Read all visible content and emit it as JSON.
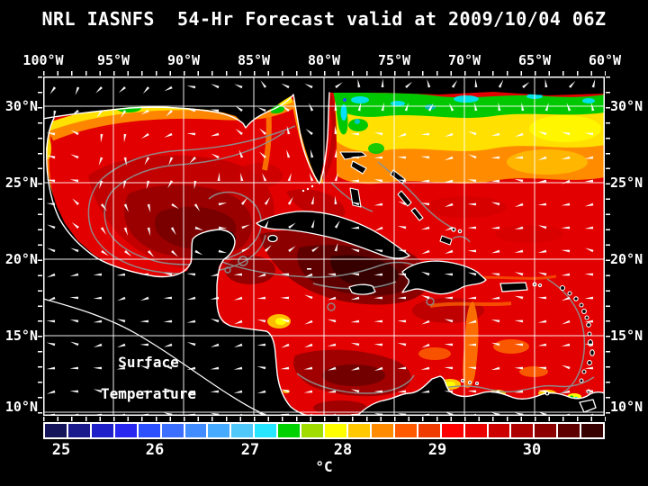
{
  "title": "NRL IASNFS  54-Hr Forecast valid at 2009/10/04 06Z",
  "annotation": {
    "line1": "Surface",
    "line2": "Temperature"
  },
  "axes": {
    "top_labels": [
      "100°W",
      "95°W",
      "90°W",
      "85°W",
      "80°W",
      "75°W",
      "70°W",
      "65°W",
      "60°W"
    ],
    "left_labels": [
      "30°N",
      "25°N",
      "20°N",
      "15°N",
      "10°N"
    ],
    "right_labels": [
      "30°N",
      "25°N",
      "20°N",
      "15°N",
      "10°N"
    ]
  },
  "colorbar": {
    "tick_labels": [
      "25",
      "26",
      "27",
      "28",
      "29",
      "30"
    ],
    "unit_label": "°C",
    "cell_colors": [
      "#14145a",
      "#1a1a8c",
      "#2020c8",
      "#2828f0",
      "#2d50ff",
      "#3c6eff",
      "#418cff",
      "#46aaff",
      "#50c8fa",
      "#28e6ff",
      "#00d200",
      "#a0dc00",
      "#ffff00",
      "#ffc800",
      "#ff8c00",
      "#ff5a00",
      "#f03c00",
      "#ff0000",
      "#eb0000",
      "#cd0000",
      "#af0000",
      "#8c0000",
      "#5f0000",
      "#370000"
    ]
  },
  "chart_data": {
    "type": "heatmap",
    "title": "NRL IASNFS 54-Hr Forecast valid at 2009/10/04 06Z",
    "variable": "Surface Temperature",
    "units": "°C",
    "lon_axis": {
      "labels": [
        "100°W",
        "95°W",
        "90°W",
        "85°W",
        "80°W",
        "75°W",
        "70°W",
        "65°W",
        "60°W"
      ],
      "range_deg_w": [
        100,
        60
      ]
    },
    "lat_axis": {
      "labels": [
        "30°N",
        "25°N",
        "20°N",
        "15°N",
        "10°N"
      ],
      "range_deg_n": [
        10,
        32
      ]
    },
    "colorbar": {
      "ticks": [
        25,
        26,
        27,
        28,
        29,
        30
      ],
      "n_cells": 24,
      "cell_step_c": 0.25
    },
    "overlays": [
      "white current-vector arrows on regular grid",
      "gray bathymetry contours",
      "white coastlines, land masked black"
    ],
    "regions_estimated_sst_c": [
      {
        "region": "Gulf of Mexico interior",
        "sst_c": "29.5-30.5"
      },
      {
        "region": "Northern Gulf coastal shelf",
        "sst_c": "26-28.5"
      },
      {
        "region": "NW Caribbean (south of Cuba)",
        "sst_c": ">30.5"
      },
      {
        "region": "Central and Eastern Caribbean",
        "sst_c": "29-29.5"
      },
      {
        "region": "Atlantic 28-30°N",
        "sst_c": "27.5-29"
      },
      {
        "region": "Atlantic north of 30°N",
        "sst_c": "26.5-27.5"
      },
      {
        "region": "Venezuela-Colombia coastal upwelling",
        "sst_c": "26.5-28.5"
      }
    ]
  },
  "colors": {
    "background": "#000000",
    "map_base_red": "#e30000",
    "grid": "#ffffff",
    "coastline": "#ffffff",
    "bathy_contour": "#8b9494",
    "arrows": "#ffffff"
  }
}
